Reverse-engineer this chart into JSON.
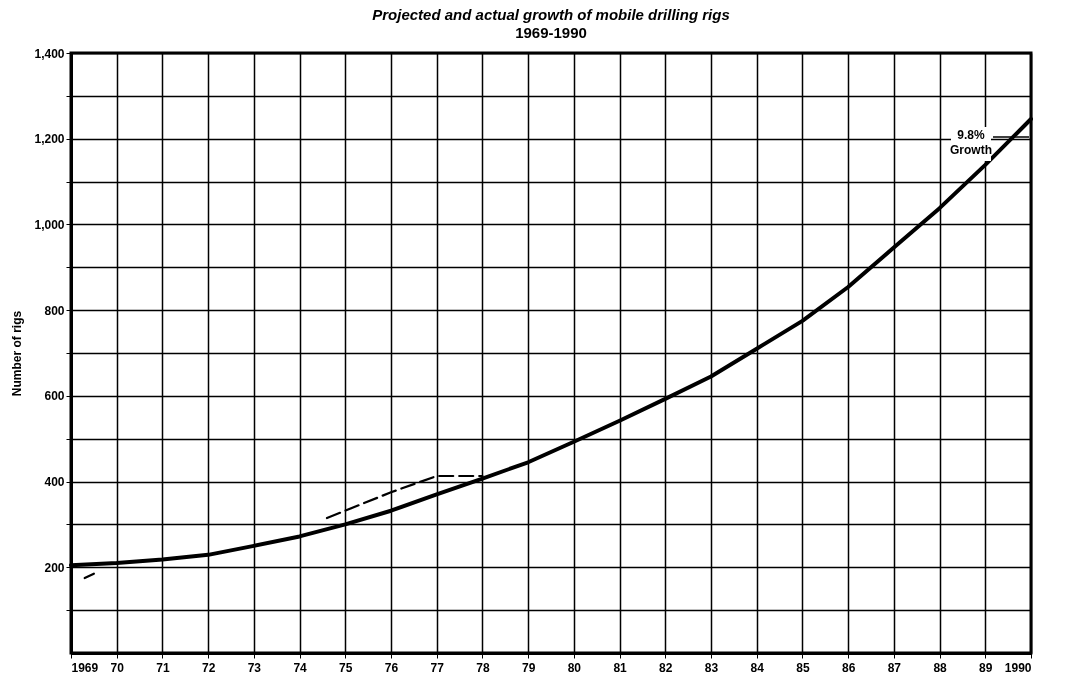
{
  "chart_data": {
    "type": "line",
    "title": "Projected and actual growth of mobile drilling rigs",
    "subtitle": "1969-1990",
    "ylabel": "Number of rigs",
    "xlim": [
      1969,
      1990
    ],
    "xticks": [
      {
        "value": 1969,
        "label": "1969"
      },
      {
        "value": 1970,
        "label": "70"
      },
      {
        "value": 1971,
        "label": "71"
      },
      {
        "value": 1972,
        "label": "72"
      },
      {
        "value": 1973,
        "label": "73"
      },
      {
        "value": 1974,
        "label": "74"
      },
      {
        "value": 1975,
        "label": "75"
      },
      {
        "value": 1976,
        "label": "76"
      },
      {
        "value": 1977,
        "label": "77"
      },
      {
        "value": 1978,
        "label": "78"
      },
      {
        "value": 1979,
        "label": "79"
      },
      {
        "value": 1980,
        "label": "80"
      },
      {
        "value": 1981,
        "label": "81"
      },
      {
        "value": 1982,
        "label": "82"
      },
      {
        "value": 1983,
        "label": "83"
      },
      {
        "value": 1984,
        "label": "84"
      },
      {
        "value": 1985,
        "label": "85"
      },
      {
        "value": 1986,
        "label": "86"
      },
      {
        "value": 1987,
        "label": "87"
      },
      {
        "value": 1988,
        "label": "88"
      },
      {
        "value": 1989,
        "label": "89"
      },
      {
        "value": 1990,
        "label": "1990"
      }
    ],
    "ylim": [
      0,
      1400
    ],
    "yticks": [
      {
        "value": 100,
        "label": null
      },
      200,
      {
        "value": 300,
        "label": null
      },
      400,
      {
        "value": 500,
        "label": null
      },
      600,
      {
        "value": 700,
        "label": null
      },
      800,
      {
        "value": 900,
        "label": null
      },
      {
        "value": 1000,
        "label": "1,000"
      },
      {
        "value": 1100,
        "label": null
      },
      {
        "value": 1200,
        "label": "1,200"
      },
      {
        "value": 1300,
        "label": null
      },
      {
        "value": 1400,
        "label": "1,400"
      }
    ],
    "grid": true,
    "series": [
      {
        "color": "#000000",
        "line_style": "solid",
        "x": [
          1969,
          1970,
          1971,
          1972,
          1973,
          1974,
          1975,
          1976,
          1977,
          1978,
          1979,
          1980,
          1981,
          1982,
          1983,
          1984,
          1985,
          1986,
          1987,
          1988,
          1989,
          1990
        ],
        "values": [
          205,
          210,
          218,
          229,
          250,
          272,
          300,
          332,
          370,
          407,
          445,
          493,
          542,
          593,
          645,
          710,
          775,
          854,
          946,
          1038,
          1139,
          1246
        ]
      },
      {
        "color": "#000000",
        "line_style": "dashed",
        "x": [
          1969.3,
          1969.5,
          1972,
          1974.6,
          1976,
          1977,
          1978
        ],
        "values": [
          175,
          185,
          null,
          315,
          375,
          413,
          413
        ]
      }
    ],
    "annotations": [
      "9.8% Growth"
    ]
  }
}
